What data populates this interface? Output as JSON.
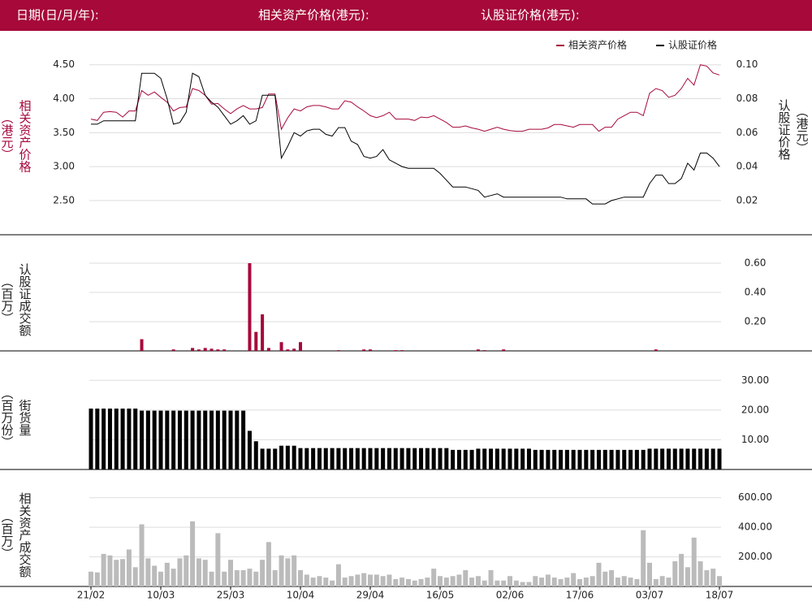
{
  "header": {
    "date_label": "日期(日/月/年):",
    "underlying_label": "相关资产价格(港元):",
    "warrant_label": "认股证价格(港元):"
  },
  "chart_data": [
    {
      "type": "line",
      "legend": "top-right",
      "grid": true,
      "ylabel": "相关资产价格",
      "ylabel_unit": "（港元）",
      "y2label": "认股证价格",
      "y2label_unit": "（港元）",
      "ylim": [
        2.2,
        4.7
      ],
      "yticks": [
        {
          "value": 2.5,
          "label": "2.50"
        },
        {
          "value": 3,
          "label": "3.00"
        },
        {
          "value": 3.5,
          "label": "3.50"
        },
        {
          "value": 4,
          "label": "4.00"
        },
        {
          "value": 4.5,
          "label": "4.50"
        }
      ],
      "y2lim": [
        0.008,
        0.108
      ],
      "y2ticks": [
        0.02,
        0.04,
        0.06,
        0.08,
        {
          "value": 0.1,
          "label": "0.10"
        }
      ],
      "series": [
        {
          "name": "相关资产价格",
          "color": "#a6093a",
          "values": [
            3.7,
            3.68,
            3.8,
            3.81,
            3.8,
            3.73,
            3.82,
            3.82,
            4.12,
            4.05,
            4.1,
            4.02,
            3.95,
            3.82,
            3.87,
            3.88,
            4.15,
            4.12,
            4.05,
            3.92,
            3.93,
            3.85,
            3.78,
            3.85,
            3.9,
            3.85,
            3.85,
            3.87,
            4.07,
            4.07,
            3.55,
            3.72,
            3.85,
            3.82,
            3.88,
            3.9,
            3.9,
            3.88,
            3.85,
            3.85,
            3.97,
            3.95,
            3.88,
            3.82,
            3.75,
            3.72,
            3.75,
            3.8,
            3.7,
            3.7,
            3.7,
            3.68,
            3.73,
            3.72,
            3.75,
            3.7,
            3.65,
            3.58,
            3.58,
            3.6,
            3.57,
            3.55,
            3.52,
            3.55,
            3.58,
            3.55,
            3.53,
            3.52,
            3.52,
            3.55,
            3.55,
            3.55,
            3.57,
            3.62,
            3.62,
            3.6,
            3.58,
            3.62,
            3.62,
            3.62,
            3.52,
            3.58,
            3.58,
            3.7,
            3.75,
            3.8,
            3.8,
            3.75,
            4.08,
            4.15,
            4.12,
            4.02,
            4.05,
            4.15,
            4.3,
            4.2,
            4.5,
            4.48,
            4.38,
            4.35
          ]
        },
        {
          "name": "认股证价格",
          "color": "#000000",
          "axis": "y2",
          "values": [
            0.065,
            0.065,
            0.067,
            0.067,
            0.067,
            0.067,
            0.067,
            0.067,
            0.095,
            0.095,
            0.095,
            0.092,
            0.08,
            0.065,
            0.066,
            0.072,
            0.095,
            0.093,
            0.082,
            0.078,
            0.075,
            0.07,
            0.065,
            0.067,
            0.07,
            0.065,
            0.067,
            0.082,
            0.082,
            0.082,
            0.045,
            0.052,
            0.06,
            0.058,
            0.061,
            0.062,
            0.062,
            0.059,
            0.058,
            0.063,
            0.063,
            0.055,
            0.053,
            0.046,
            0.045,
            0.046,
            0.05,
            0.044,
            0.042,
            0.04,
            0.039,
            0.039,
            0.039,
            0.039,
            0.039,
            0.036,
            0.032,
            0.028,
            0.028,
            0.028,
            0.027,
            0.026,
            0.022,
            0.023,
            0.024,
            0.022,
            0.022,
            0.022,
            0.022,
            0.022,
            0.022,
            0.022,
            0.022,
            0.022,
            0.022,
            0.021,
            0.021,
            0.021,
            0.021,
            0.018,
            0.018,
            0.018,
            0.02,
            0.021,
            0.022,
            0.022,
            0.022,
            0.022,
            0.03,
            0.035,
            0.035,
            0.03,
            0.03,
            0.033,
            0.042,
            0.038,
            0.048,
            0.048,
            0.045,
            0.04
          ]
        }
      ]
    },
    {
      "type": "bar",
      "grid": true,
      "ylabel": "认股证成交额",
      "ylabel_unit": "（百万）",
      "color": "#a6093a",
      "ylim": [
        0,
        0.7
      ],
      "yticks": [
        {
          "value": 0.2,
          "label": "0.20"
        },
        {
          "value": 0.4,
          "label": "0.40"
        },
        {
          "value": 0.6,
          "label": "0.60"
        }
      ],
      "values": [
        0,
        0,
        0,
        0,
        0,
        0,
        0,
        0,
        0.08,
        0,
        0,
        0,
        0,
        0.01,
        0,
        0,
        0.02,
        0.01,
        0.02,
        0.015,
        0.01,
        0.01,
        0,
        0,
        0,
        0.6,
        0.13,
        0.25,
        0.02,
        0,
        0.06,
        0.01,
        0.015,
        0.06,
        0,
        0,
        0,
        0,
        0,
        0.005,
        0,
        0,
        0,
        0.01,
        0.01,
        0,
        0,
        0,
        0.005,
        0.005,
        0,
        0,
        0,
        0,
        0,
        0,
        0,
        0,
        0,
        0,
        0,
        0.01,
        0.005,
        0,
        0,
        0.01,
        0,
        0,
        0,
        0,
        0,
        0,
        0,
        0,
        0,
        0,
        0,
        0,
        0,
        0,
        0,
        0,
        0,
        0,
        0,
        0,
        0,
        0,
        0,
        0.01,
        0,
        0,
        0,
        0,
        0,
        0,
        0,
        0,
        0,
        0
      ]
    },
    {
      "type": "bar",
      "grid": true,
      "ylabel": "街货量",
      "ylabel_unit": "（百万份）",
      "color": "#000000",
      "ylim": [
        0,
        35
      ],
      "yticks": [
        {
          "value": 10,
          "label": "10.00"
        },
        {
          "value": 20,
          "label": "20.00"
        },
        {
          "value": 30,
          "label": "30.00"
        }
      ],
      "values": [
        20.5,
        20.5,
        20.5,
        20.5,
        20.5,
        20.5,
        20.5,
        20.5,
        19.8,
        19.8,
        19.8,
        19.8,
        19.8,
        19.8,
        19.8,
        19.8,
        19.8,
        19.8,
        19.8,
        19.8,
        19.8,
        19.8,
        19.8,
        19.8,
        19.8,
        13,
        9.5,
        7,
        7,
        7,
        8,
        8,
        8,
        7.2,
        7.2,
        7.2,
        7.2,
        7.2,
        7.2,
        7.2,
        7.2,
        7.2,
        7.2,
        7.2,
        7.2,
        7.2,
        7.2,
        7.2,
        7.2,
        7.2,
        7.2,
        7.2,
        7.2,
        7.2,
        7.2,
        7.2,
        7.2,
        6.6,
        6.6,
        6.6,
        6.6,
        7,
        7,
        7,
        7,
        7,
        7,
        7,
        7,
        7,
        6.6,
        6.6,
        6.6,
        6.6,
        6.6,
        6.6,
        6.6,
        6.6,
        6.6,
        6.6,
        6.6,
        6.6,
        6.6,
        6.6,
        6.6,
        6.6,
        6.6,
        6.6,
        7,
        7,
        7,
        7,
        7,
        7,
        7,
        7,
        7,
        7,
        7,
        7
      ]
    },
    {
      "type": "bar",
      "grid": true,
      "ylabel": "相关资产成交额",
      "ylabel_unit": "（百万）",
      "color": "#bbbbbb",
      "ylim": [
        0,
        700
      ],
      "yticks": [
        {
          "value": 200,
          "label": "200.00"
        },
        {
          "value": 400,
          "label": "400.00"
        },
        {
          "value": 600,
          "label": "600.00"
        }
      ],
      "categories": [
        "21/02",
        null,
        null,
        null,
        null,
        null,
        null,
        null,
        null,
        null,
        null,
        "10/03",
        null,
        null,
        null,
        null,
        null,
        null,
        null,
        null,
        null,
        null,
        "25/03",
        null,
        null,
        null,
        null,
        null,
        null,
        null,
        null,
        null,
        null,
        "10/04",
        null,
        null,
        null,
        null,
        null,
        null,
        null,
        null,
        null,
        null,
        "29/04",
        null,
        null,
        null,
        null,
        null,
        null,
        null,
        null,
        null,
        null,
        "16/05",
        null,
        null,
        null,
        null,
        null,
        null,
        null,
        null,
        null,
        null,
        "02/06",
        null,
        null,
        null,
        null,
        null,
        null,
        null,
        null,
        null,
        null,
        "17/06",
        null,
        null,
        null,
        null,
        null,
        null,
        null,
        null,
        null,
        null,
        "03/07",
        null,
        null,
        null,
        null,
        null,
        null,
        null,
        null,
        null,
        null,
        "18/07"
      ],
      "values": [
        100,
        95,
        220,
        210,
        180,
        185,
        250,
        130,
        420,
        190,
        140,
        100,
        160,
        120,
        190,
        210,
        440,
        190,
        180,
        100,
        360,
        100,
        180,
        110,
        110,
        120,
        100,
        180,
        300,
        110,
        210,
        190,
        210,
        110,
        80,
        60,
        70,
        60,
        40,
        150,
        60,
        70,
        80,
        90,
        80,
        80,
        70,
        80,
        50,
        60,
        50,
        40,
        50,
        60,
        120,
        70,
        60,
        70,
        80,
        110,
        60,
        70,
        40,
        110,
        40,
        40,
        70,
        40,
        30,
        30,
        70,
        60,
        80,
        60,
        50,
        60,
        90,
        50,
        60,
        70,
        160,
        100,
        110,
        60,
        70,
        60,
        50,
        380,
        160,
        50,
        70,
        60,
        170,
        220,
        130,
        330,
        170,
        110,
        120,
        70
      ]
    }
  ]
}
